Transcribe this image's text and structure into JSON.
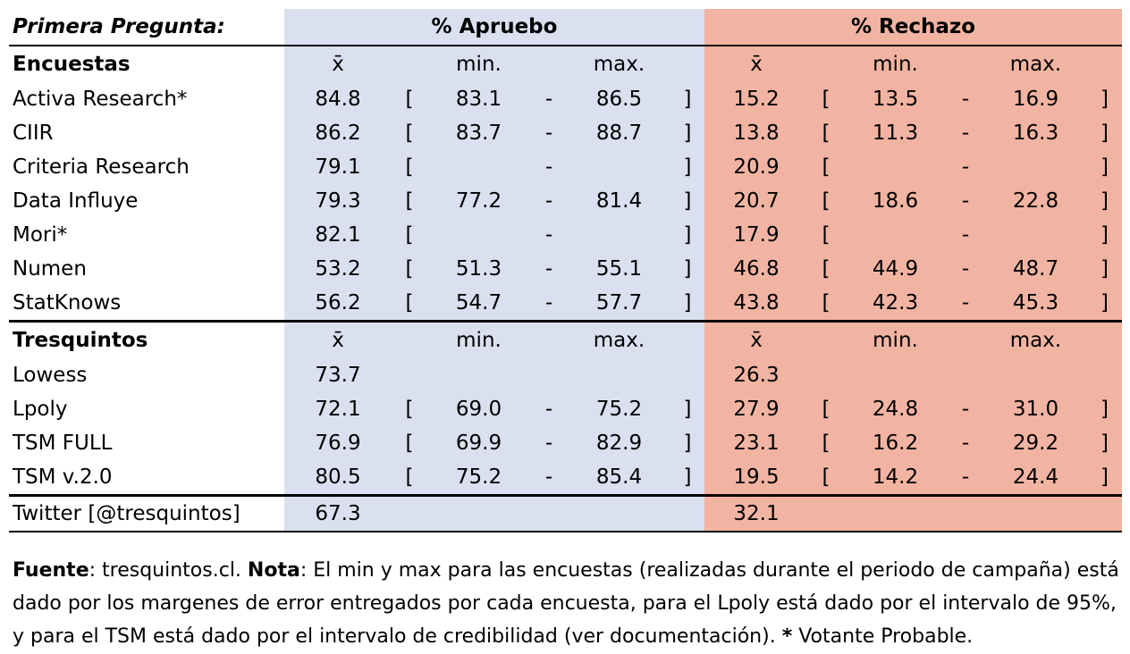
{
  "header": {
    "title": "Primera Pregunta:",
    "aprueba": "% Apruebo",
    "rechazo": "% Rechazo"
  },
  "sections": [
    {
      "label": "Encuestas",
      "cols": [
        "x̄",
        "min.",
        "max.",
        "x̄",
        "min.",
        "max."
      ],
      "rows": [
        {
          "name": "Activa Research*",
          "a": [
            "84.8",
            "[",
            "83.1",
            "-",
            "86.5",
            "]"
          ],
          "r": [
            "15.2",
            "[",
            "13.5",
            "-",
            "16.9",
            "]"
          ]
        },
        {
          "name": "CIIR",
          "a": [
            "86.2",
            "[",
            "83.7",
            "-",
            "88.7",
            "]"
          ],
          "r": [
            "13.8",
            "[",
            "11.3",
            "-",
            "16.3",
            "]"
          ]
        },
        {
          "name": "Criteria Research",
          "a": [
            "79.1",
            "[",
            "",
            "-",
            "",
            "]"
          ],
          "r": [
            "20.9",
            "[",
            "",
            "-",
            "",
            "]"
          ]
        },
        {
          "name": "Data Influye",
          "a": [
            "79.3",
            "[",
            "77.2",
            "-",
            "81.4",
            "]"
          ],
          "r": [
            "20.7",
            "[",
            "18.6",
            "-",
            "22.8",
            "]"
          ]
        },
        {
          "name": "Mori*",
          "a": [
            "82.1",
            "[",
            "",
            "-",
            "",
            "]"
          ],
          "r": [
            "17.9",
            "[",
            "",
            "-",
            "",
            "]"
          ]
        },
        {
          "name": "Numen",
          "a": [
            "53.2",
            "[",
            "51.3",
            "-",
            "55.1",
            "]"
          ],
          "r": [
            "46.8",
            "[",
            "44.9",
            "-",
            "48.7",
            "]"
          ]
        },
        {
          "name": "StatKnows",
          "a": [
            "56.2",
            "[",
            "54.7",
            "-",
            "57.7",
            "]"
          ],
          "r": [
            "43.8",
            "[",
            "42.3",
            "-",
            "45.3",
            "]"
          ]
        }
      ]
    },
    {
      "label": "Tresquintos",
      "cols": [
        "x̄",
        "min.",
        "max.",
        "x̄",
        "min.",
        "max."
      ],
      "rows": [
        {
          "name": "Lowess",
          "a": [
            "73.7",
            "",
            "",
            "",
            "",
            ""
          ],
          "r": [
            "26.3",
            "",
            "",
            "",
            "",
            ""
          ]
        },
        {
          "name": "Lpoly",
          "a": [
            "72.1",
            "[",
            "69.0",
            "-",
            "75.2",
            "]"
          ],
          "r": [
            "27.9",
            "[",
            "24.8",
            "-",
            "31.0",
            "]"
          ]
        },
        {
          "name": "TSM FULL",
          "a": [
            "76.9",
            "[",
            "69.9",
            "-",
            "82.9",
            "]"
          ],
          "r": [
            "23.1",
            "[",
            "16.2",
            "-",
            "29.2",
            "]"
          ]
        },
        {
          "name": "TSM v.2.0",
          "a": [
            "80.5",
            "[",
            "75.2",
            "-",
            "85.4",
            "]"
          ],
          "r": [
            "19.5",
            "[",
            "14.2",
            "-",
            "24.4",
            "]"
          ]
        }
      ]
    }
  ],
  "twitter": {
    "name": "Twitter [@tresquintos]",
    "a": "67.3",
    "r": "32.1"
  },
  "note": {
    "fuente_label": "Fuente",
    "fuente_text": ": tresquintos.cl. ",
    "nota_label": "Nota",
    "nota_text": ": El min y max para las encuestas (realizadas durante el periodo de campaña) está dado por los margenes de error entregados por cada encuesta, para el Lpoly está dado por el intervalo de 95%, y para el TSM está dado por  el intervalo de credibilidad (ver documentación). ",
    "star": "*",
    "star_text": " Votante Probable."
  }
}
